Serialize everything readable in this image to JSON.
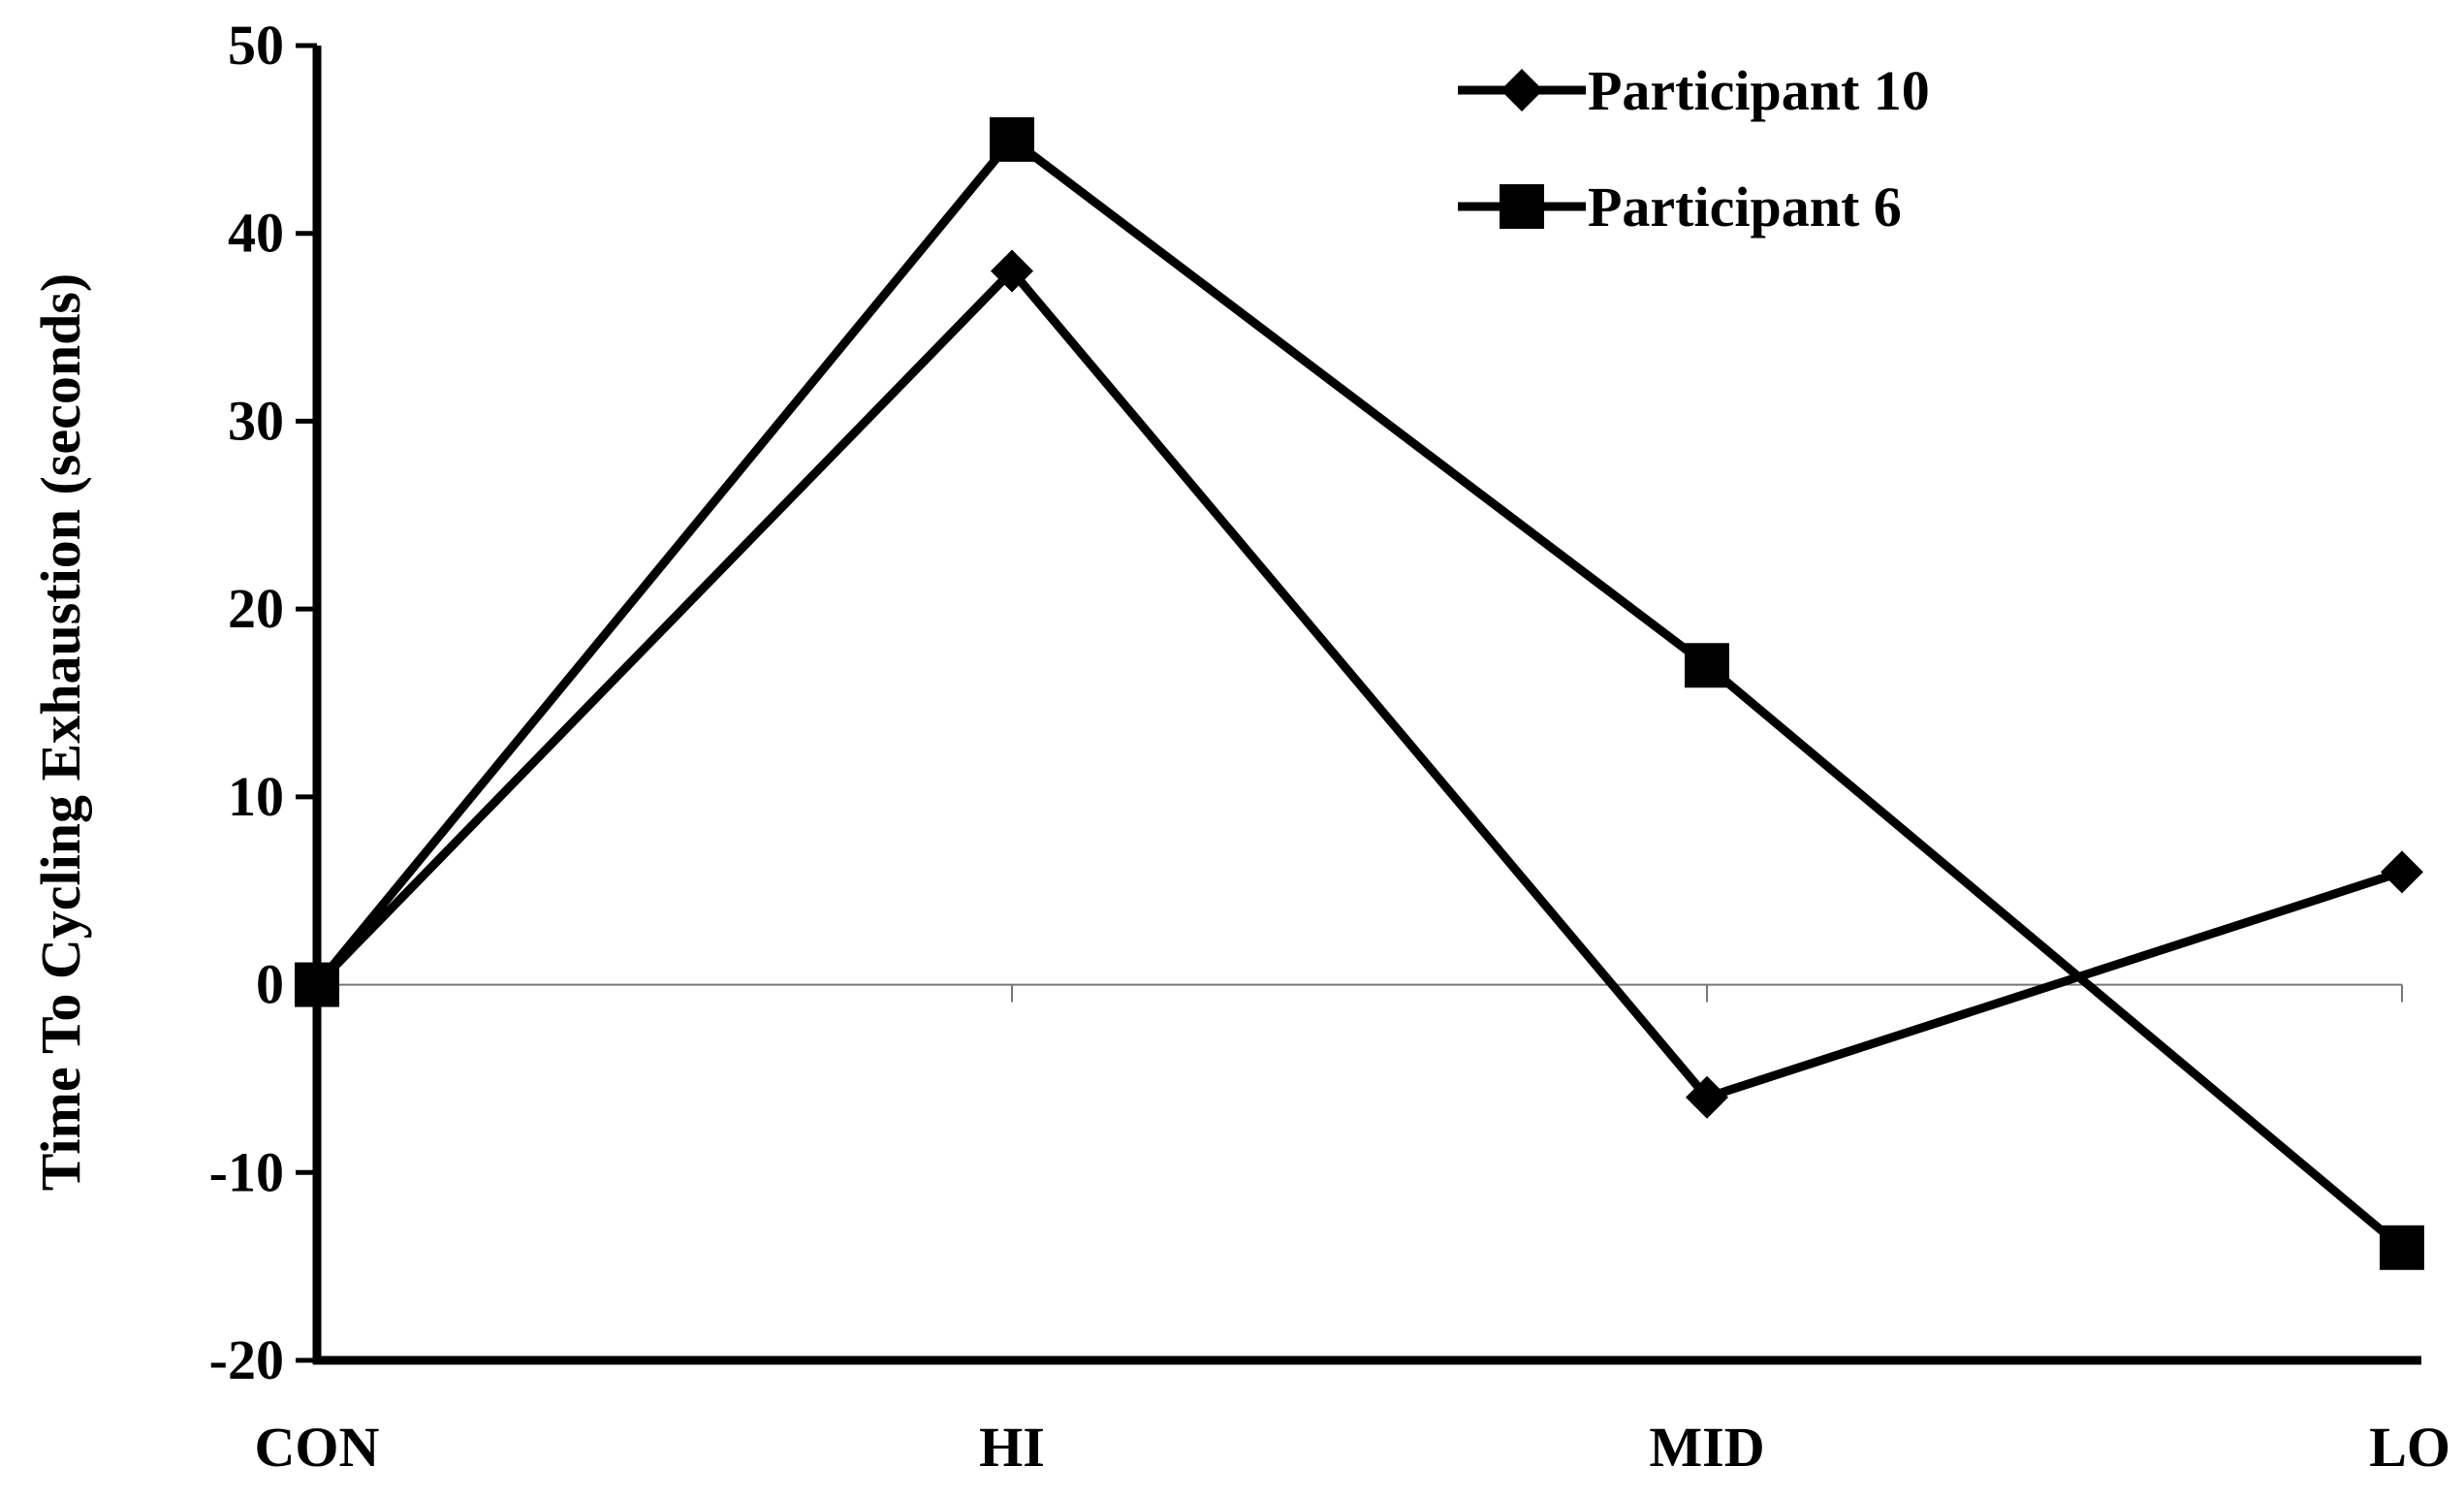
{
  "chart_data": {
    "type": "line",
    "title": "",
    "xlabel": "",
    "ylabel": "Time To Cycling Exhaustion (seconds)",
    "categories": [
      "CON",
      "HI",
      "MID",
      "LO"
    ],
    "ylim": [
      -20,
      50
    ],
    "yticks": [
      50,
      40,
      30,
      20,
      10,
      0,
      -10,
      -20
    ],
    "grid": false,
    "legend_position": "top-right",
    "series": [
      {
        "name": "Participant 10",
        "marker": "diamond",
        "color": "#000000",
        "values": [
          0,
          38,
          -6,
          6
        ]
      },
      {
        "name": "Participant 6",
        "marker": "square",
        "color": "#000000",
        "values": [
          0,
          45,
          17,
          -14
        ]
      }
    ]
  }
}
